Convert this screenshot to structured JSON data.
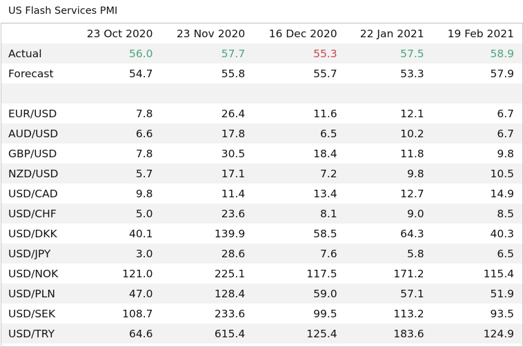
{
  "chart_data": {
    "type": "table",
    "title": "US Flash Services PMI",
    "columns": [
      "23 Oct 2020",
      "23 Nov 2020",
      "16 Dec 2020",
      "22 Jan 2021",
      "19 Feb 2021"
    ],
    "rows": [
      {
        "label": "Actual",
        "values": [
          "56.0",
          "57.7",
          "55.3",
          "57.5",
          "58.9"
        ],
        "colors": [
          "#4aa37a",
          "#4aa37a",
          "#c7464b",
          "#4aa37a",
          "#4aa37a"
        ]
      },
      {
        "label": "Forecast",
        "values": [
          "54.7",
          "55.8",
          "55.7",
          "53.3",
          "57.9"
        ]
      },
      {
        "label": "",
        "values": [
          "",
          "",
          "",
          "",
          ""
        ]
      },
      {
        "label": "EUR/USD",
        "values": [
          "7.8",
          "26.4",
          "11.6",
          "12.1",
          "6.7"
        ]
      },
      {
        "label": "AUD/USD",
        "values": [
          "6.6",
          "17.8",
          "6.5",
          "10.2",
          "6.7"
        ]
      },
      {
        "label": "GBP/USD",
        "values": [
          "7.8",
          "30.5",
          "18.4",
          "11.8",
          "9.8"
        ]
      },
      {
        "label": "NZD/USD",
        "values": [
          "5.7",
          "17.1",
          "7.2",
          "9.8",
          "10.5"
        ]
      },
      {
        "label": "USD/CAD",
        "values": [
          "9.8",
          "11.4",
          "13.4",
          "12.7",
          "14.9"
        ]
      },
      {
        "label": "USD/CHF",
        "values": [
          "5.0",
          "23.6",
          "8.1",
          "9.0",
          "8.5"
        ]
      },
      {
        "label": "USD/DKK",
        "values": [
          "40.1",
          "139.9",
          "58.5",
          "64.3",
          "40.3"
        ]
      },
      {
        "label": "USD/JPY",
        "values": [
          "3.0",
          "28.6",
          "7.6",
          "5.8",
          "6.5"
        ]
      },
      {
        "label": "USD/NOK",
        "values": [
          "121.0",
          "225.1",
          "117.5",
          "171.2",
          "115.4"
        ]
      },
      {
        "label": "USD/PLN",
        "values": [
          "47.0",
          "128.4",
          "59.0",
          "57.1",
          "51.9"
        ]
      },
      {
        "label": "USD/SEK",
        "values": [
          "108.7",
          "233.6",
          "99.5",
          "113.2",
          "93.5"
        ]
      },
      {
        "label": "USD/TRY",
        "values": [
          "64.6",
          "615.4",
          "125.4",
          "183.6",
          "124.9"
        ]
      }
    ]
  }
}
